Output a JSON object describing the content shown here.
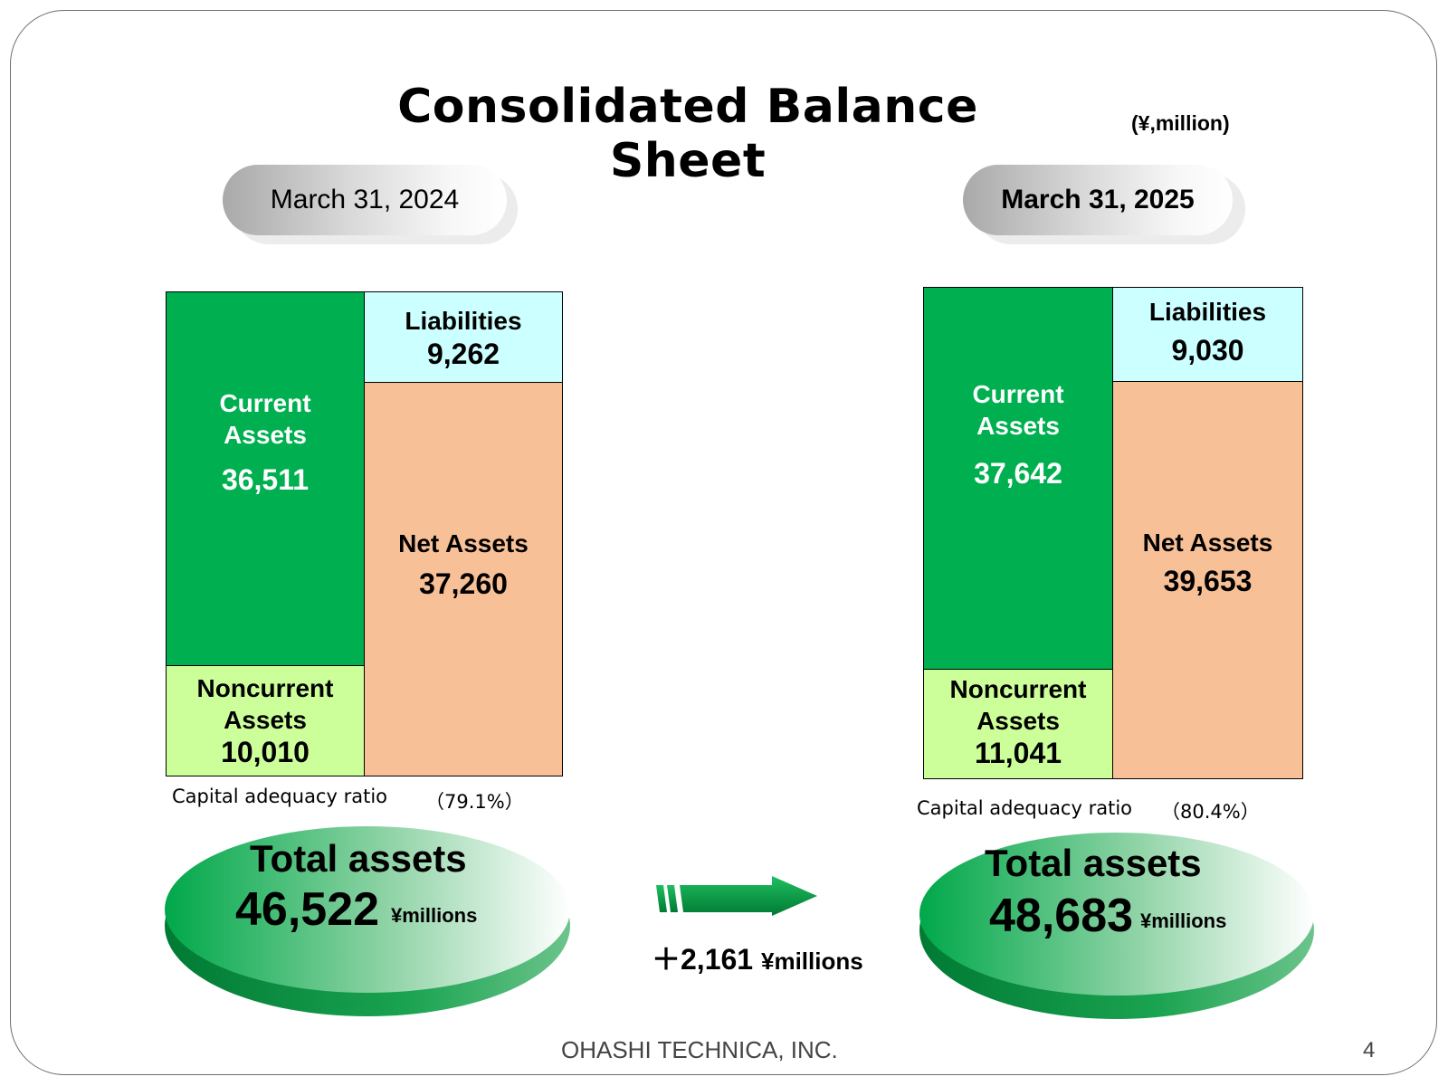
{
  "title": "Consolidated Balance Sheet",
  "unit": "(¥,million)",
  "colors": {
    "current_assets": "#00b050",
    "noncurrent_assets": "#ccff99",
    "liabilities": "#ccffff",
    "net_assets": "#f8c096"
  },
  "periods": [
    {
      "date": "March 31, 2024",
      "current_assets": {
        "label1": "Current",
        "label2": "Assets",
        "value": "36,511"
      },
      "noncurrent_assets": {
        "label1": "Noncurrent",
        "label2": "Assets",
        "value": "10,010"
      },
      "liabilities": {
        "label": "Liabilities",
        "value": "9,262"
      },
      "net_assets": {
        "label": "Net Assets",
        "value": "37,260"
      },
      "capital_ratio_label": "Capital adequacy ratio",
      "capital_ratio_value": "（79.1%）",
      "total_label": "Total assets",
      "total_value": "46,522",
      "total_unit": "¥millions"
    },
    {
      "date": "March 31, 2025",
      "current_assets": {
        "label1": "Current",
        "label2": "Assets",
        "value": "37,642"
      },
      "noncurrent_assets": {
        "label1": "Noncurrent",
        "label2": "Assets",
        "value": "11,041"
      },
      "liabilities": {
        "label": "Liabilities",
        "value": "9,030"
      },
      "net_assets": {
        "label": "Net Assets",
        "value": "39,653"
      },
      "capital_ratio_label": "Capital adequacy ratio",
      "capital_ratio_value": "（80.4%）",
      "total_label": "Total assets",
      "total_value": "48,683",
      "total_unit": "¥millions"
    }
  ],
  "change": {
    "value": "＋2,161",
    "unit": "¥millions"
  },
  "footer": {
    "company": "OHASHI TECHNICA, INC.",
    "page": "4"
  }
}
